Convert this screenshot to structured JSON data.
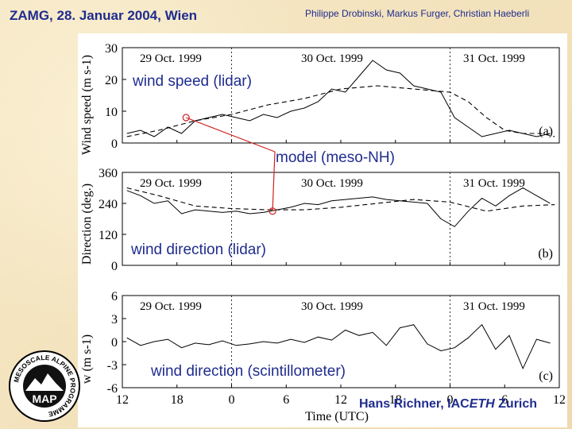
{
  "header": {
    "left": "ZAMG, 28. Januar 2004, Wien",
    "right": "Philippe Drobinski, Markus Furger, Christian Haeberli"
  },
  "annotations": {
    "wind_speed": "wind speed (lidar)",
    "model": "model (meso-NH)",
    "direction_lidar": "wind direction (lidar)",
    "direction_scint": "wind direction (scintillometer)"
  },
  "footer": {
    "name": "Hans Richner, IAC",
    "eth": "ETH",
    "city": " Zurich"
  },
  "logo": {
    "ring_text": "MESOSCALE ALPINE PROGRAMME",
    "center_text": "MAP"
  },
  "colors": {
    "title": "#1f2c8f",
    "model_line": "#d02020",
    "data": "#000000"
  },
  "chart_data": [
    {
      "type": "line",
      "panel_label": "(a)",
      "ylabel": "Wind speed (m s-1)",
      "ylim": [
        0,
        30
      ],
      "yticks": [
        0,
        10,
        20,
        30
      ],
      "dates": [
        "29 Oct. 1999",
        "30 Oct. 1999",
        "31 Oct. 1999"
      ],
      "xlim": [
        12,
        60
      ],
      "series": [
        {
          "name": "wind speed (lidar)",
          "style": "solid",
          "x": [
            12.5,
            14,
            15.5,
            17,
            18.5,
            20,
            21.5,
            23,
            24.5,
            26,
            27.5,
            29,
            30.5,
            32,
            33.5,
            35,
            36.5,
            38,
            39.5,
            41,
            42.5,
            44,
            45.5,
            47,
            48.5,
            50,
            51.5,
            53,
            54.5,
            56,
            57.5,
            59
          ],
          "y": [
            3,
            4,
            2,
            5,
            3,
            7,
            8,
            9,
            8,
            7,
            9,
            8,
            10,
            11,
            13,
            17,
            16,
            21,
            26,
            23,
            22,
            18,
            17,
            16,
            8,
            5,
            2,
            3,
            4,
            3,
            2,
            3
          ]
        },
        {
          "name": "model (meso-NH)",
          "style": "dashed",
          "x": [
            12.5,
            16,
            20,
            24,
            28,
            32,
            36,
            40,
            44,
            48,
            50,
            52,
            54,
            56,
            58,
            59.5
          ],
          "y": [
            2,
            4,
            7,
            9,
            12,
            14,
            17,
            18,
            17,
            16,
            13,
            8,
            4,
            3,
            3,
            2
          ]
        }
      ]
    },
    {
      "type": "line",
      "panel_label": "(b)",
      "ylabel": "Direction (deg.)",
      "ylim": [
        0,
        360
      ],
      "yticks": [
        0,
        120,
        240,
        360
      ],
      "dates": [
        "29 Oct. 1999",
        "30 Oct. 1999",
        "31 Oct. 1999"
      ],
      "xlim": [
        12,
        60
      ],
      "series": [
        {
          "name": "wind direction (lidar)",
          "style": "solid",
          "x": [
            12.5,
            14,
            15.5,
            17,
            18.5,
            20,
            21.5,
            23,
            24.5,
            26,
            27.5,
            29,
            30.5,
            32,
            33.5,
            35,
            36.5,
            38,
            39.5,
            41,
            42.5,
            44,
            45.5,
            47,
            48.5,
            50,
            51.5,
            53,
            54.5,
            56,
            57.5,
            59
          ],
          "y": [
            290,
            270,
            240,
            250,
            200,
            215,
            210,
            205,
            210,
            200,
            205,
            215,
            225,
            240,
            235,
            250,
            255,
            260,
            265,
            255,
            250,
            245,
            240,
            180,
            150,
            210,
            260,
            230,
            270,
            300,
            270,
            240
          ]
        },
        {
          "name": "model (meso-NH)",
          "style": "dashed",
          "x": [
            12.5,
            16,
            20,
            24,
            28,
            32,
            36,
            40,
            44,
            48,
            52,
            56,
            59.5
          ],
          "y": [
            300,
            270,
            230,
            220,
            215,
            215,
            225,
            240,
            255,
            245,
            210,
            230,
            235
          ]
        }
      ]
    },
    {
      "type": "line",
      "panel_label": "(c)",
      "ylabel": "w (m s-1)",
      "ylim": [
        -6,
        6
      ],
      "yticks": [
        -6,
        -3,
        0,
        3,
        6
      ],
      "xlabel": "Time (UTC)",
      "xticklabels": [
        "12",
        "18",
        "0",
        "6",
        "12",
        "18",
        "0",
        "6",
        "12"
      ],
      "dates": [
        "29 Oct. 1999",
        "30 Oct. 1999",
        "31 Oct. 1999"
      ],
      "xlim": [
        12,
        60
      ],
      "series": [
        {
          "name": "w",
          "style": "solid",
          "x": [
            12.5,
            14,
            15.5,
            17,
            18.5,
            20,
            21.5,
            23,
            24.5,
            26,
            27.5,
            29,
            30.5,
            32,
            33.5,
            35,
            36.5,
            38,
            39.5,
            41,
            42.5,
            44,
            45.5,
            47,
            48.5,
            50,
            51.5,
            53,
            54.5,
            56,
            57.5,
            59
          ],
          "y": [
            0.5,
            -0.5,
            0,
            0.3,
            -0.8,
            -0.2,
            -0.4,
            0.1,
            -0.5,
            -0.3,
            0,
            -0.2,
            0.3,
            -0.1,
            0.6,
            0.2,
            1.5,
            0.8,
            1.2,
            -0.5,
            1.8,
            2.2,
            -0.3,
            -1.2,
            -0.8,
            0.5,
            2.2,
            -1,
            0.8,
            -3.5,
            0.3,
            -0.2
          ]
        }
      ]
    }
  ]
}
